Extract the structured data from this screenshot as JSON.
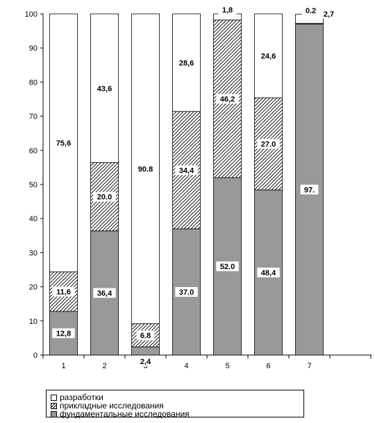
{
  "chart_data": {
    "type": "bar",
    "stacked": true,
    "categories": [
      "1",
      "2",
      "3",
      "4",
      "5",
      "6",
      "7"
    ],
    "ylim": [
      0,
      100
    ],
    "yticks": [
      0,
      10,
      20,
      30,
      40,
      50,
      60,
      70,
      80,
      90,
      100
    ],
    "grid": false,
    "legend_position": "bottom",
    "series": [
      {
        "name": "фундаментальные исследования",
        "color": "#999999",
        "values": [
          12.8,
          36.4,
          2.4,
          37.0,
          52.0,
          48.4,
          97.0
        ],
        "labels": [
          "12,8",
          "36,4",
          "2,4",
          "37.0",
          "52.0",
          "48,4",
          "97."
        ]
      },
      {
        "name": "прикладные исследования",
        "color": "hatch",
        "values": [
          11.6,
          20.0,
          6.8,
          34.4,
          46.2,
          27.0,
          0.2
        ],
        "labels": [
          "11,6",
          "20.0",
          "6.8",
          "34,4",
          "46,2",
          "27.0",
          "0.2"
        ]
      },
      {
        "name": "разработки",
        "color": "#ffffff",
        "values": [
          75.6,
          43.6,
          90.8,
          28.6,
          1.8,
          24.6,
          2.7
        ],
        "labels": [
          "75,6",
          "43,6",
          "90.8",
          "28,6",
          "1,8",
          "24,6",
          "2,7"
        ]
      }
    ]
  },
  "legend": {
    "items": [
      {
        "label": "разработки",
        "swatch": "white"
      },
      {
        "label": "прикладные исследования",
        "swatch": "hatch"
      },
      {
        "label": "фундаментальные исследования",
        "swatch": "grey"
      }
    ]
  }
}
